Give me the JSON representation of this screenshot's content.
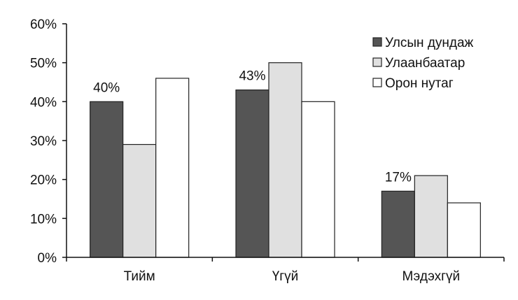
{
  "chart_data": {
    "type": "bar",
    "categories": [
      "Тийм",
      "Үгүй",
      "Мэдэхгүй"
    ],
    "series": [
      {
        "name": "Улсын дундаж",
        "values": [
          40,
          43,
          17
        ],
        "color": "#555555"
      },
      {
        "name": "Улаанбаатар",
        "values": [
          29,
          50,
          21
        ],
        "color": "#e0e0e0"
      },
      {
        "name": "Орон нутаг",
        "values": [
          46,
          40,
          14
        ],
        "color": "#ffffff"
      }
    ],
    "data_labels": [
      {
        "series": 0,
        "category": 0,
        "text": "40%"
      },
      {
        "series": 0,
        "category": 1,
        "text": "43%"
      },
      {
        "series": 0,
        "category": 2,
        "text": "17%"
      }
    ],
    "ylim": [
      0,
      60
    ],
    "yticks": [
      0,
      10,
      20,
      30,
      40,
      50,
      60
    ],
    "ytick_labels": [
      "0%",
      "10%",
      "20%",
      "30%",
      "40%",
      "50%",
      "60%"
    ],
    "grid": false,
    "legend_position": "top-right"
  }
}
